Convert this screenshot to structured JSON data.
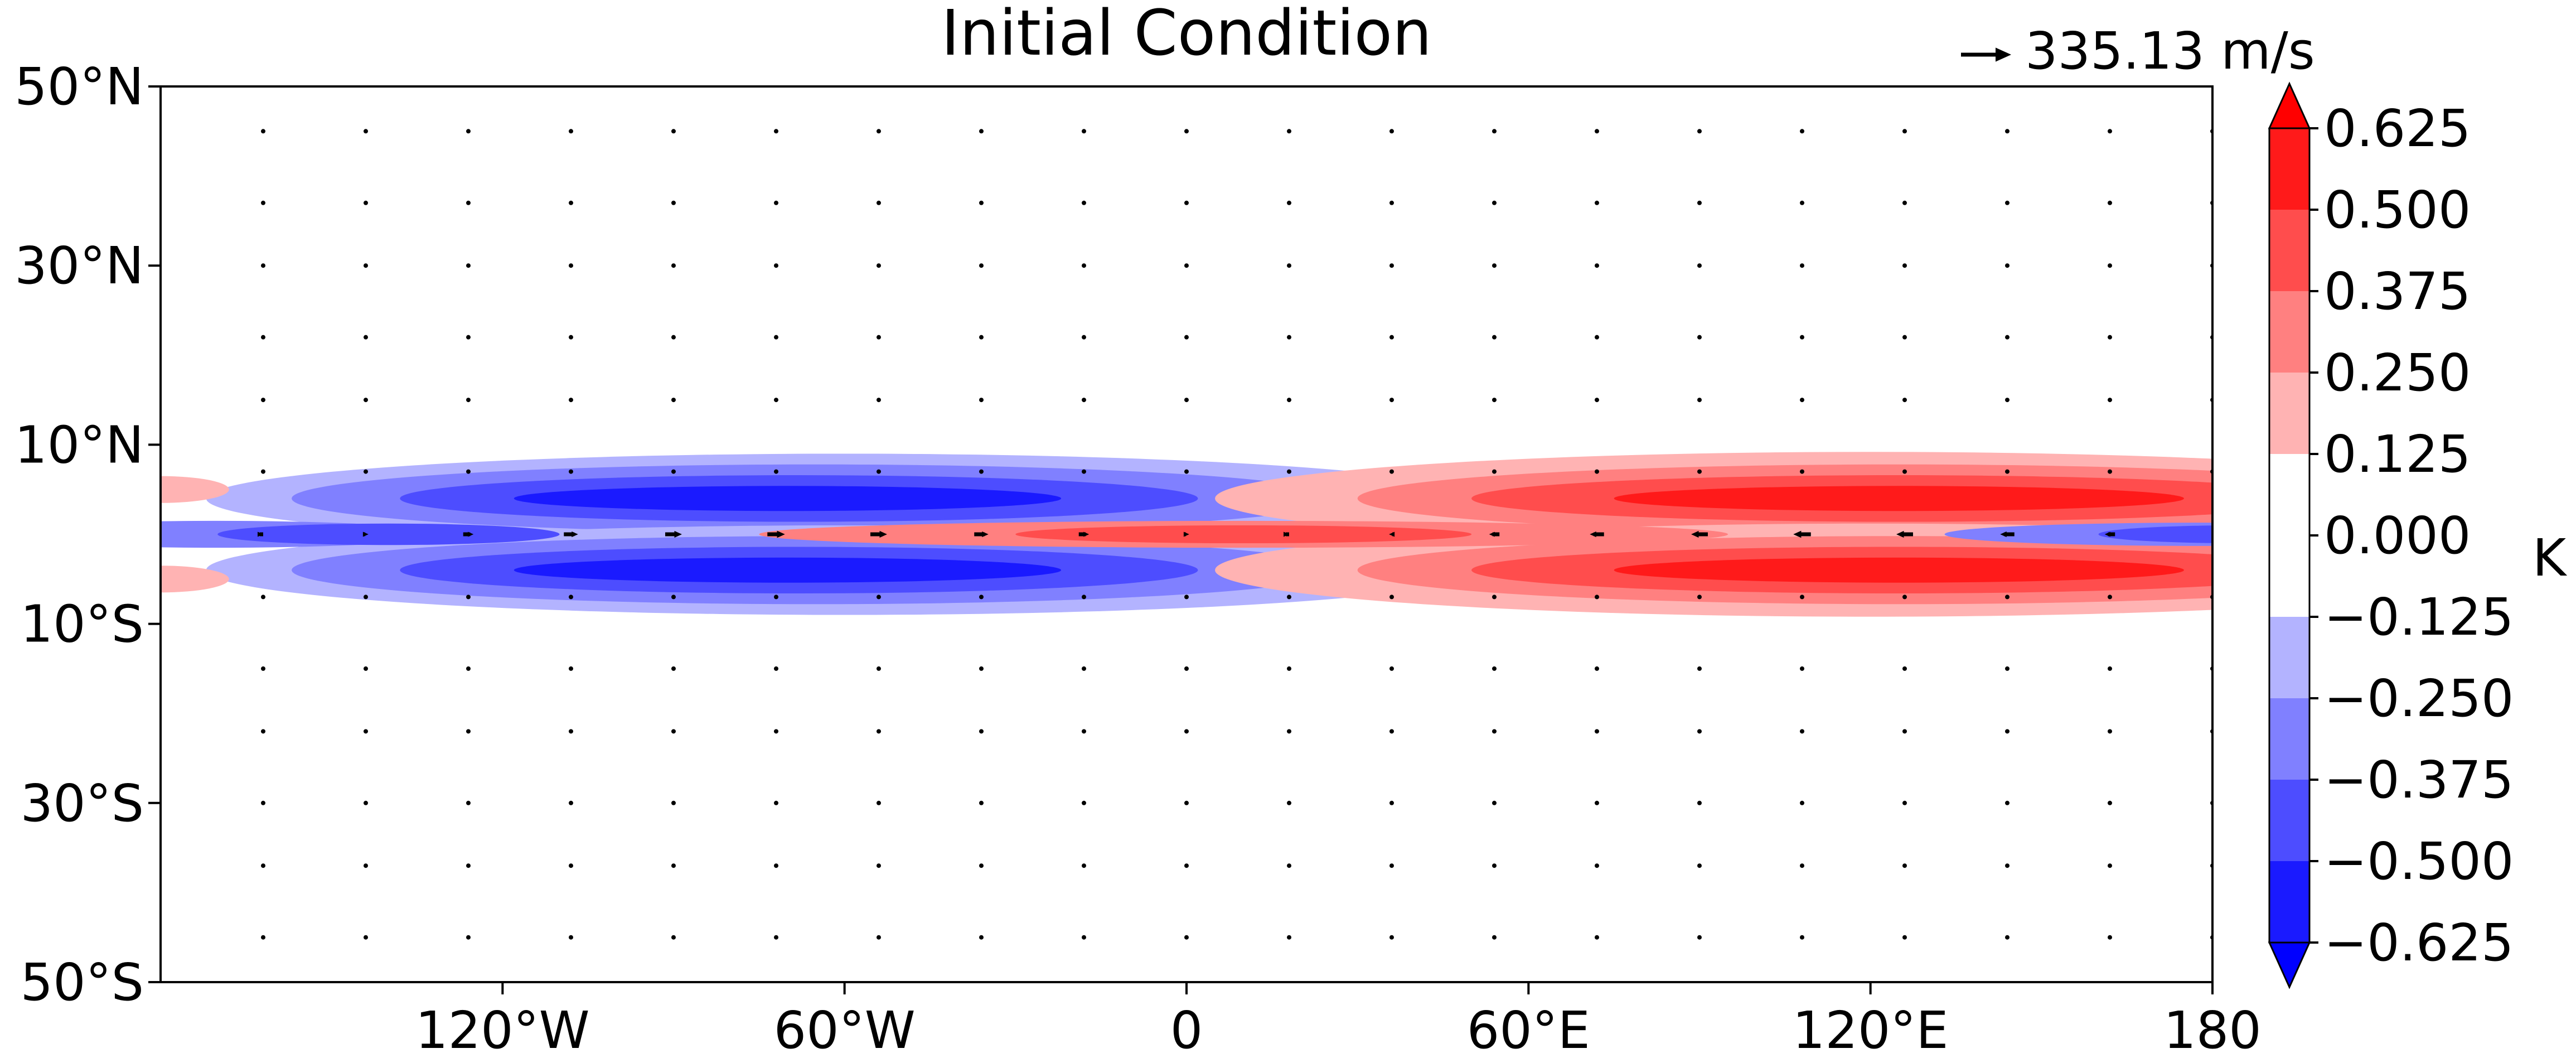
{
  "chart_data": {
    "type": "contour-map-with-vectors",
    "title": "Initial Condition",
    "x_ticks": [
      "120°W",
      "60°W",
      "0",
      "60°E",
      "120°E",
      "180"
    ],
    "y_ticks": [
      "50°N",
      "30°N",
      "10°N",
      "10°S",
      "30°S",
      "50°S"
    ],
    "xlim": [
      -180,
      180
    ],
    "ylim": [
      -50,
      50
    ],
    "colorbar": {
      "unit": "K",
      "levels": [
        "−0.625",
        "−0.500",
        "−0.375",
        "−0.250",
        "−0.125",
        "0.000",
        "0.125",
        "0.250",
        "0.375",
        "0.500",
        "0.625"
      ],
      "colors": [
        "#0000ff",
        "#1a1aff",
        "#4d4dff",
        "#8080ff",
        "#b3b3ff",
        "#ffffff",
        "#ffb3b3",
        "#ff8080",
        "#ff4d4d",
        "#ff1a1a",
        "#ff0000"
      ],
      "extend": "both"
    },
    "vector_key": {
      "label": "335.13 m/s",
      "magnitude": 335.13
    },
    "field": {
      "description_values": {
        "cold_anomaly_center_lon": -60,
        "warm_anomaly_center_lon": 120,
        "off_equator_lat": 4,
        "min": -0.625,
        "max": 0.625
      }
    }
  }
}
